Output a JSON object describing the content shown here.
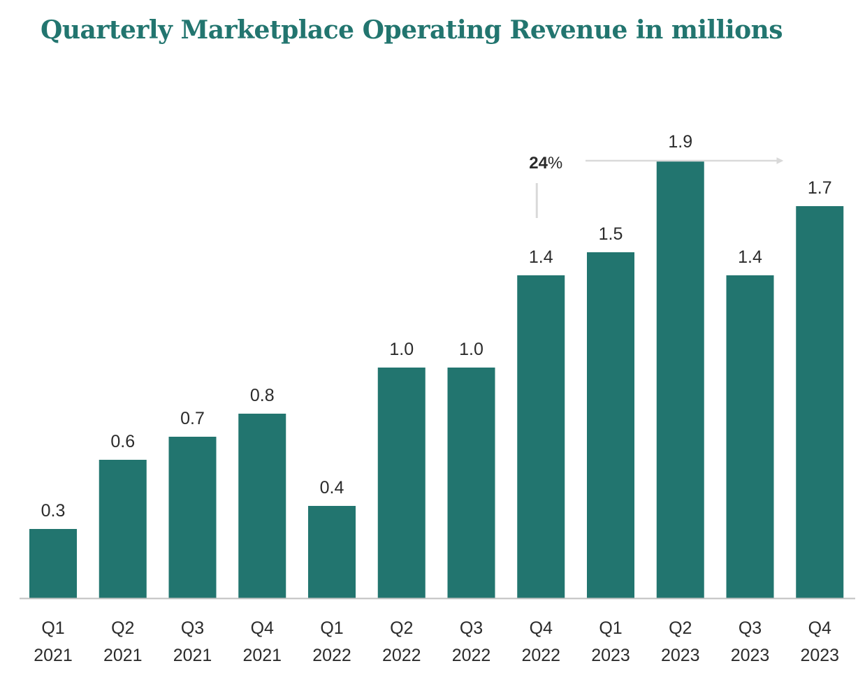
{
  "chart_data": {
    "type": "bar",
    "title": "Quarterly Marketplace Operating Revenue in millions",
    "xlabel": "",
    "ylabel": "",
    "categories": [
      [
        "Q1",
        "2021"
      ],
      [
        "Q2",
        "2021"
      ],
      [
        "Q3",
        "2021"
      ],
      [
        "Q4",
        "2021"
      ],
      [
        "Q1",
        "2022"
      ],
      [
        "Q2",
        "2022"
      ],
      [
        "Q3",
        "2022"
      ],
      [
        "Q4",
        "2022"
      ],
      [
        "Q1",
        "2023"
      ],
      [
        "Q2",
        "2023"
      ],
      [
        "Q3",
        "2023"
      ],
      [
        "Q4",
        "2023"
      ]
    ],
    "values": [
      0.3,
      0.6,
      0.7,
      0.8,
      0.4,
      1.0,
      1.0,
      1.4,
      1.5,
      1.9,
      1.4,
      1.7
    ],
    "value_labels": [
      "0.3",
      "0.6",
      "0.7",
      "0.8",
      "0.4",
      "1.0",
      "1.0",
      "1.4",
      "1.5",
      "1.9",
      "1.4",
      "1.7"
    ],
    "ylim": [
      0,
      2.0
    ],
    "grid": false,
    "legend": "none",
    "annotation": {
      "number": "24",
      "unit": "%"
    }
  },
  "colors": {
    "bar": "#22756f",
    "title": "#22756f",
    "axis": "#bfbfbf",
    "text": "#2b2b2b",
    "annotation_line": "#d9d9d9"
  }
}
